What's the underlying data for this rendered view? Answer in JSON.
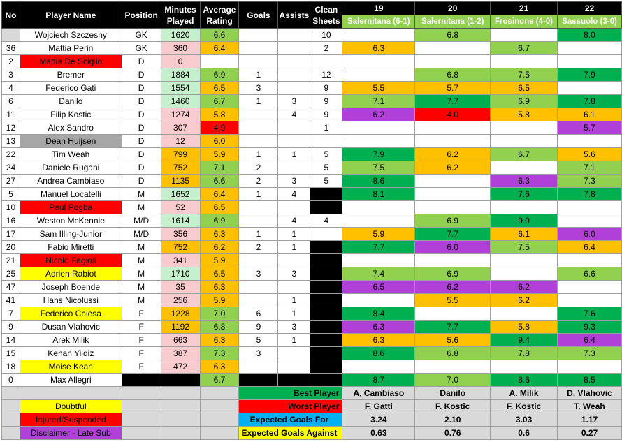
{
  "colors": {
    "black": "#000000",
    "header_green": "#92d050",
    "best_green": "#00b050",
    "good_green": "#92d050",
    "orange": "#ffc000",
    "purple": "#b040d8",
    "red": "#ff0000",
    "yellow": "#ffff00",
    "grey": "#a6a6a6",
    "pink": "#f8cbcf",
    "light_green": "#c6efce",
    "blue": "#00b0f0",
    "light_grey": "#d9d9d9"
  },
  "headers": {
    "no": "No",
    "player_name": "Player Name",
    "position": "Position",
    "minutes_played": "Minutes Played",
    "average_rating": "Average Rating",
    "goals": "Goals",
    "assists": "Assists",
    "clean_sheets": "Clean Sheets",
    "matches": [
      {
        "num": "19",
        "opponent": "Salernitana (6-1)"
      },
      {
        "num": "20",
        "opponent": "Salernitana (1-2)"
      },
      {
        "num": "21",
        "opponent": "Frosinone (4-0)"
      },
      {
        "num": "22",
        "opponent": "Sassuolo (3-0)"
      }
    ]
  },
  "players": [
    {
      "no": "",
      "name": "Wojciech Szczesny",
      "name_bg": "",
      "pos": "GK",
      "min": "1620",
      "min_bg": "green",
      "avg": "6.6",
      "avg_bg": "good",
      "goals": "",
      "assists": "",
      "cs": "10",
      "cs_bg": "",
      "r": [
        {
          "v": "",
          "c": ""
        },
        {
          "v": "6.8",
          "c": "good"
        },
        {
          "v": "",
          "c": ""
        },
        {
          "v": "8.0",
          "c": "best"
        }
      ]
    },
    {
      "no": "36",
      "name": "Mattia Perin",
      "name_bg": "",
      "pos": "GK",
      "min": "360",
      "min_bg": "pink",
      "avg": "6.4",
      "avg_bg": "orange",
      "goals": "",
      "assists": "",
      "cs": "2",
      "cs_bg": "",
      "r": [
        {
          "v": "6.3",
          "c": "orange"
        },
        {
          "v": "",
          "c": ""
        },
        {
          "v": "6.7",
          "c": "good"
        },
        {
          "v": "",
          "c": ""
        }
      ]
    },
    {
      "no": "2",
      "name": "Mattia De Sciglio",
      "name_bg": "red",
      "pos": "D",
      "min": "0",
      "min_bg": "pink",
      "avg": "",
      "avg_bg": "",
      "goals": "",
      "assists": "",
      "cs": "",
      "cs_bg": "",
      "r": [
        {
          "v": "",
          "c": ""
        },
        {
          "v": "",
          "c": ""
        },
        {
          "v": "",
          "c": ""
        },
        {
          "v": "",
          "c": ""
        }
      ]
    },
    {
      "no": "3",
      "name": "Bremer",
      "name_bg": "",
      "pos": "D",
      "min": "1884",
      "min_bg": "green",
      "avg": "6.9",
      "avg_bg": "good",
      "goals": "1",
      "assists": "",
      "cs": "12",
      "cs_bg": "",
      "r": [
        {
          "v": "",
          "c": ""
        },
        {
          "v": "6.8",
          "c": "good"
        },
        {
          "v": "7.5",
          "c": "good"
        },
        {
          "v": "7.9",
          "c": "best"
        }
      ]
    },
    {
      "no": "4",
      "name": "Federico Gati",
      "name_bg": "",
      "pos": "D",
      "min": "1554",
      "min_bg": "green",
      "avg": "6.5",
      "avg_bg": "orange",
      "goals": "3",
      "assists": "",
      "cs": "9",
      "cs_bg": "",
      "r": [
        {
          "v": "5.5",
          "c": "orange"
        },
        {
          "v": "5.7",
          "c": "orange"
        },
        {
          "v": "6.5",
          "c": "orange"
        },
        {
          "v": "",
          "c": ""
        }
      ]
    },
    {
      "no": "6",
      "name": "Danilo",
      "name_bg": "",
      "pos": "D",
      "min": "1460",
      "min_bg": "green",
      "avg": "6.7",
      "avg_bg": "good",
      "goals": "1",
      "assists": "3",
      "cs": "9",
      "cs_bg": "",
      "r": [
        {
          "v": "7.1",
          "c": "good"
        },
        {
          "v": "7.7",
          "c": "best"
        },
        {
          "v": "6.9",
          "c": "good"
        },
        {
          "v": "7.8",
          "c": "best"
        }
      ]
    },
    {
      "no": "11",
      "name": "Filip Kostic",
      "name_bg": "",
      "pos": "D",
      "min": "1274",
      "min_bg": "pink",
      "avg": "5.8",
      "avg_bg": "orange",
      "goals": "",
      "assists": "4",
      "cs": "9",
      "cs_bg": "",
      "r": [
        {
          "v": "6.2",
          "c": "purple"
        },
        {
          "v": "4.0",
          "c": "red"
        },
        {
          "v": "5.8",
          "c": "orange"
        },
        {
          "v": "6.1",
          "c": "orange"
        }
      ]
    },
    {
      "no": "12",
      "name": "Alex Sandro",
      "name_bg": "",
      "pos": "D",
      "min": "307",
      "min_bg": "pink",
      "avg": "4.9",
      "avg_bg": "red",
      "goals": "",
      "assists": "",
      "cs": "1",
      "cs_bg": "",
      "r": [
        {
          "v": "",
          "c": ""
        },
        {
          "v": "",
          "c": ""
        },
        {
          "v": "",
          "c": ""
        },
        {
          "v": "5.7",
          "c": "purple"
        }
      ]
    },
    {
      "no": "13",
      "name": "Dean Huijsen",
      "name_bg": "grey",
      "pos": "D",
      "min": "12",
      "min_bg": "pink",
      "avg": "6.0",
      "avg_bg": "orange",
      "goals": "",
      "assists": "",
      "cs": "",
      "cs_bg": "",
      "r": [
        {
          "v": "",
          "c": ""
        },
        {
          "v": "",
          "c": ""
        },
        {
          "v": "",
          "c": ""
        },
        {
          "v": "",
          "c": ""
        }
      ]
    },
    {
      "no": "22",
      "name": "Tim Weah",
      "name_bg": "",
      "pos": "D",
      "min": "799",
      "min_bg": "orange",
      "avg": "5.9",
      "avg_bg": "orange",
      "goals": "1",
      "assists": "1",
      "cs": "5",
      "cs_bg": "",
      "r": [
        {
          "v": "7.9",
          "c": "best"
        },
        {
          "v": "6.2",
          "c": "orange"
        },
        {
          "v": "6.7",
          "c": "good"
        },
        {
          "v": "5.6",
          "c": "orange"
        }
      ]
    },
    {
      "no": "24",
      "name": "Daniele Rugani",
      "name_bg": "",
      "pos": "D",
      "min": "752",
      "min_bg": "orange",
      "avg": "7.1",
      "avg_bg": "good",
      "goals": "2",
      "assists": "",
      "cs": "5",
      "cs_bg": "",
      "r": [
        {
          "v": "7.5",
          "c": "good"
        },
        {
          "v": "6.2",
          "c": "orange"
        },
        {
          "v": "",
          "c": ""
        },
        {
          "v": "7.1",
          "c": "good"
        }
      ]
    },
    {
      "no": "27",
      "name": "Andrea Cambiaso",
      "name_bg": "",
      "pos": "D",
      "min": "1135",
      "min_bg": "orange",
      "avg": "6.6",
      "avg_bg": "good",
      "goals": "2",
      "assists": "3",
      "cs": "5",
      "cs_bg": "",
      "r": [
        {
          "v": "8.6",
          "c": "best"
        },
        {
          "v": "",
          "c": ""
        },
        {
          "v": "6.3",
          "c": "purple"
        },
        {
          "v": "7.3",
          "c": "good"
        }
      ]
    },
    {
      "no": "5",
      "name": "Manuel Locatelli",
      "name_bg": "",
      "pos": "M",
      "min": "1652",
      "min_bg": "green",
      "avg": "6.4",
      "avg_bg": "orange",
      "goals": "1",
      "assists": "4",
      "cs": "",
      "cs_bg": "black",
      "r": [
        {
          "v": "8.1",
          "c": "best"
        },
        {
          "v": "",
          "c": ""
        },
        {
          "v": "7.6",
          "c": "best"
        },
        {
          "v": "7.8",
          "c": "best"
        }
      ]
    },
    {
      "no": "10",
      "name": "Paul Pogba",
      "name_bg": "red",
      "pos": "M",
      "min": "52",
      "min_bg": "pink",
      "avg": "6.5",
      "avg_bg": "orange",
      "goals": "",
      "assists": "",
      "cs": "",
      "cs_bg": "black",
      "r": [
        {
          "v": "",
          "c": ""
        },
        {
          "v": "",
          "c": ""
        },
        {
          "v": "",
          "c": ""
        },
        {
          "v": "",
          "c": ""
        }
      ]
    },
    {
      "no": "16",
      "name": "Weston McKennie",
      "name_bg": "",
      "pos": "M/D",
      "min": "1614",
      "min_bg": "green",
      "avg": "6.9",
      "avg_bg": "good",
      "goals": "",
      "assists": "4",
      "cs": "4",
      "cs_bg": "",
      "r": [
        {
          "v": "",
          "c": ""
        },
        {
          "v": "6.9",
          "c": "good"
        },
        {
          "v": "9.0",
          "c": "best"
        },
        {
          "v": "",
          "c": ""
        }
      ]
    },
    {
      "no": "17",
      "name": "Sam Illing-Junior",
      "name_bg": "",
      "pos": "M/D",
      "min": "356",
      "min_bg": "pink",
      "avg": "6.3",
      "avg_bg": "orange",
      "goals": "1",
      "assists": "1",
      "cs": "",
      "cs_bg": "",
      "r": [
        {
          "v": "5.9",
          "c": "orange"
        },
        {
          "v": "7.7",
          "c": "best"
        },
        {
          "v": "6.1",
          "c": "orange"
        },
        {
          "v": "6.0",
          "c": "purple"
        }
      ]
    },
    {
      "no": "20",
      "name": "Fabio Miretti",
      "name_bg": "",
      "pos": "M",
      "min": "752",
      "min_bg": "orange",
      "avg": "6.2",
      "avg_bg": "orange",
      "goals": "2",
      "assists": "1",
      "cs": "",
      "cs_bg": "black",
      "r": [
        {
          "v": "7.7",
          "c": "best"
        },
        {
          "v": "6.0",
          "c": "purple"
        },
        {
          "v": "7.5",
          "c": "good"
        },
        {
          "v": "6.4",
          "c": "orange"
        }
      ]
    },
    {
      "no": "21",
      "name": "Nicolo Fagioli",
      "name_bg": "red",
      "pos": "M",
      "min": "341",
      "min_bg": "pink",
      "avg": "5.9",
      "avg_bg": "orange",
      "goals": "",
      "assists": "",
      "cs": "",
      "cs_bg": "black",
      "r": [
        {
          "v": "",
          "c": ""
        },
        {
          "v": "",
          "c": ""
        },
        {
          "v": "",
          "c": ""
        },
        {
          "v": "",
          "c": ""
        }
      ]
    },
    {
      "no": "25",
      "name": "Adrien Rabiot",
      "name_bg": "yellow",
      "pos": "M",
      "min": "1710",
      "min_bg": "green",
      "avg": "6.5",
      "avg_bg": "orange",
      "goals": "3",
      "assists": "3",
      "cs": "",
      "cs_bg": "black",
      "r": [
        {
          "v": "7.4",
          "c": "good"
        },
        {
          "v": "6.9",
          "c": "good"
        },
        {
          "v": "",
          "c": ""
        },
        {
          "v": "6.6",
          "c": "good"
        }
      ]
    },
    {
      "no": "47",
      "name": "Joseph Boende",
      "name_bg": "",
      "pos": "M",
      "min": "35",
      "min_bg": "pink",
      "avg": "6.3",
      "avg_bg": "orange",
      "goals": "",
      "assists": "",
      "cs": "",
      "cs_bg": "black",
      "r": [
        {
          "v": "6.5",
          "c": "purple"
        },
        {
          "v": "6.2",
          "c": "purple"
        },
        {
          "v": "6.2",
          "c": "purple"
        },
        {
          "v": "",
          "c": ""
        }
      ]
    },
    {
      "no": "41",
      "name": "Hans Nicolussi",
      "name_bg": "",
      "pos": "M",
      "min": "256",
      "min_bg": "pink",
      "avg": "5.9",
      "avg_bg": "orange",
      "goals": "",
      "assists": "1",
      "cs": "",
      "cs_bg": "black",
      "r": [
        {
          "v": "",
          "c": ""
        },
        {
          "v": "5.5",
          "c": "orange"
        },
        {
          "v": "6.2",
          "c": "orange"
        },
        {
          "v": "",
          "c": ""
        }
      ]
    },
    {
      "no": "7",
      "name": "Federico Chiesa",
      "name_bg": "yellow",
      "pos": "F",
      "min": "1228",
      "min_bg": "orange",
      "avg": "7.0",
      "avg_bg": "good",
      "goals": "6",
      "assists": "1",
      "cs": "",
      "cs_bg": "black",
      "r": [
        {
          "v": "8.4",
          "c": "best"
        },
        {
          "v": "",
          "c": ""
        },
        {
          "v": "",
          "c": ""
        },
        {
          "v": "7.6",
          "c": "best"
        }
      ]
    },
    {
      "no": "9",
      "name": "Dusan Vlahovic",
      "name_bg": "",
      "pos": "F",
      "min": "1192",
      "min_bg": "orange",
      "avg": "6.8",
      "avg_bg": "good",
      "goals": "9",
      "assists": "3",
      "cs": "",
      "cs_bg": "black",
      "r": [
        {
          "v": "6.3",
          "c": "purple"
        },
        {
          "v": "7.7",
          "c": "best"
        },
        {
          "v": "5.8",
          "c": "orange"
        },
        {
          "v": "9.3",
          "c": "best"
        }
      ]
    },
    {
      "no": "14",
      "name": "Arek Milik",
      "name_bg": "",
      "pos": "F",
      "min": "663",
      "min_bg": "pink",
      "avg": "6.3",
      "avg_bg": "orange",
      "goals": "5",
      "assists": "1",
      "cs": "",
      "cs_bg": "black",
      "r": [
        {
          "v": "6.3",
          "c": "orange"
        },
        {
          "v": "5.6",
          "c": "orange"
        },
        {
          "v": "9.4",
          "c": "best"
        },
        {
          "v": "6.4",
          "c": "purple"
        }
      ]
    },
    {
      "no": "15",
      "name": "Kenan Yildiz",
      "name_bg": "",
      "pos": "F",
      "min": "387",
      "min_bg": "pink",
      "avg": "7.3",
      "avg_bg": "good",
      "goals": "3",
      "assists": "",
      "cs": "",
      "cs_bg": "black",
      "r": [
        {
          "v": "8.6",
          "c": "best"
        },
        {
          "v": "6.8",
          "c": "good"
        },
        {
          "v": "7.8",
          "c": "good"
        },
        {
          "v": "7.3",
          "c": "good"
        }
      ]
    },
    {
      "no": "18",
      "name": "Moise Kean",
      "name_bg": "yellow",
      "pos": "F",
      "min": "472",
      "min_bg": "pink",
      "avg": "6.3",
      "avg_bg": "orange",
      "goals": "",
      "assists": "",
      "cs": "",
      "cs_bg": "black",
      "r": [
        {
          "v": "",
          "c": ""
        },
        {
          "v": "",
          "c": ""
        },
        {
          "v": "",
          "c": ""
        },
        {
          "v": "",
          "c": ""
        }
      ]
    },
    {
      "no": "0",
      "name": "Max Allegri",
      "name_bg": "",
      "pos": "",
      "pos_bg": "black",
      "min": "",
      "min_bg": "black",
      "avg": "6.7",
      "avg_bg": "good",
      "goals": "",
      "goals_bg": "black",
      "assists": "",
      "assists_bg": "black",
      "cs": "",
      "cs_bg": "black",
      "r": [
        {
          "v": "8.7",
          "c": "best"
        },
        {
          "v": "7.0",
          "c": "good"
        },
        {
          "v": "8.6",
          "c": "best"
        },
        {
          "v": "8.5",
          "c": "best"
        }
      ]
    }
  ],
  "legend": {
    "doubtful": "Doubtful",
    "injured": "Injured/Suspended",
    "disclaimer": "Disclaimer - Late Sub"
  },
  "summary": [
    {
      "label": "Best Player",
      "label_bg": "best",
      "label_color": "#000000",
      "values": [
        "A, Cambiaso",
        "Danilo",
        "A. Milik",
        "D. Vlahovic"
      ]
    },
    {
      "label": "Worst Player",
      "label_bg": "red",
      "label_color": "#000000",
      "values": [
        "F. Gatti",
        "F. Kostic",
        "F. Kostic",
        "T. Weah"
      ]
    },
    {
      "label": "Expected Goals For",
      "label_bg": "blue",
      "label_color": "#000000",
      "values": [
        "3.24",
        "2.10",
        "3.03",
        "1.17"
      ]
    },
    {
      "label": "Expected Goals Against",
      "label_bg": "yellow",
      "label_color": "#000000",
      "values": [
        "0.63",
        "0.76",
        "0.6",
        "0.27"
      ]
    }
  ]
}
